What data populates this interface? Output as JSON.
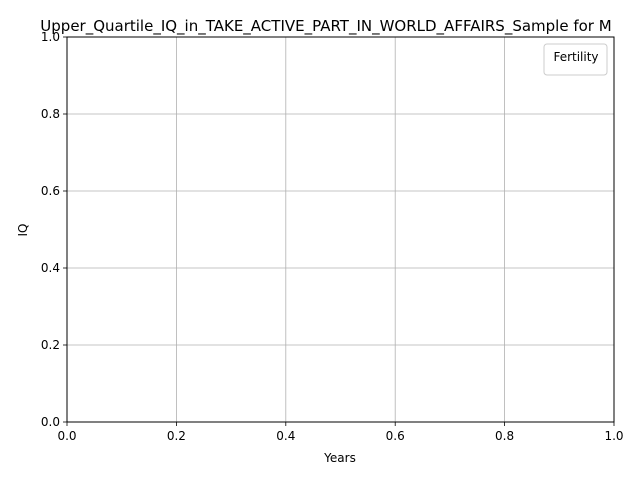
{
  "chart_data": {
    "type": "line",
    "title": "Upper_Quartile_IQ_in_TAKE_ACTIVE_PART_IN_WORLD_AFFAIRS_Sample for M",
    "xlabel": "Years",
    "ylabel": "IQ",
    "xlim": [
      0.0,
      1.0
    ],
    "ylim": [
      0.0,
      1.0
    ],
    "xticks": [
      "0.0",
      "0.2",
      "0.4",
      "0.6",
      "0.8",
      "1.0"
    ],
    "yticks": [
      "0.0",
      "0.2",
      "0.4",
      "0.6",
      "0.8",
      "1.0"
    ],
    "grid": true,
    "legend": {
      "title": "Fertility",
      "placement": "top-right",
      "entries": []
    },
    "series": []
  },
  "colors": {
    "background": "#ffffff",
    "grid": "#b0b0b0",
    "axis": "#000000",
    "legend_border": "#cccccc"
  }
}
